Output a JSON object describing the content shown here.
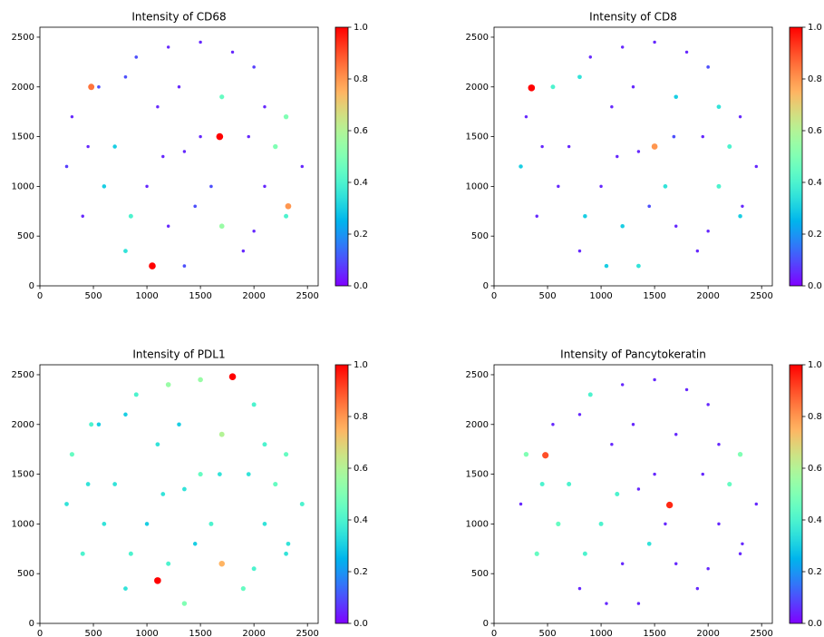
{
  "chart_data": [
    {
      "type": "scatter",
      "title": "Intensity of CD68",
      "colormap": "rainbow",
      "x": [
        1350,
        800,
        1500,
        2000,
        2300,
        2450,
        2300,
        1900,
        1350,
        800,
        400,
        250,
        300,
        550,
        1100,
        1700,
        1950,
        1600,
        1000,
        700,
        1200,
        1700,
        2100,
        900,
        1300,
        600,
        1500,
        2100,
        1050,
        1680,
        480,
        2320,
        1200,
        450,
        2000,
        1450,
        850,
        1800,
        1150,
        2200
      ],
      "y": [
        1350,
        2100,
        2450,
        2200,
        1700,
        1200,
        700,
        350,
        200,
        350,
        700,
        1200,
        1700,
        2000,
        1800,
        1900,
        1500,
        1000,
        1000,
        1400,
        600,
        600,
        1000,
        2300,
        2000,
        1000,
        1500,
        1800,
        200,
        1500,
        2000,
        800,
        2400,
        1400,
        550,
        800,
        700,
        2350,
        1300,
        1400
      ],
      "intensity": [
        0.05,
        0.1,
        0.05,
        0.08,
        0.5,
        0.05,
        0.4,
        0.05,
        0.1,
        0.35,
        0.05,
        0.08,
        0.05,
        0.1,
        0.05,
        0.45,
        0.05,
        0.1,
        0.05,
        0.3,
        0.05,
        0.55,
        0.05,
        0.1,
        0.05,
        0.3,
        0.05,
        0.05,
        1.0,
        1.0,
        0.85,
        0.8,
        0.05,
        0.05,
        0.05,
        0.1,
        0.4,
        0.05,
        0.05,
        0.5
      ],
      "xlim": [
        0,
        2600
      ],
      "ylim": [
        0,
        2600
      ],
      "xticks": [
        0,
        500,
        1000,
        1500,
        2000,
        2500
      ],
      "yticks": [
        0,
        500,
        1000,
        1500,
        2000,
        2500
      ],
      "clim": [
        0,
        1
      ],
      "cticks": [
        {
          "value": 0,
          "label": "0.0"
        },
        0.2,
        0.4,
        0.6,
        0.8,
        {
          "value": 1,
          "label": "1.0"
        }
      ]
    },
    {
      "type": "scatter",
      "title": "Intensity of CD8",
      "colormap": "rainbow",
      "x": [
        1350,
        800,
        1500,
        2000,
        2300,
        2450,
        2300,
        1900,
        1350,
        800,
        400,
        250,
        300,
        550,
        1100,
        1700,
        1950,
        1600,
        1000,
        700,
        1200,
        1700,
        2100,
        900,
        1300,
        600,
        1500,
        2100,
        1050,
        1680,
        350,
        2320,
        1200,
        450,
        2000,
        1450,
        850,
        1800,
        1150,
        2200
      ],
      "y": [
        1350,
        2100,
        2450,
        2200,
        1700,
        1200,
        700,
        350,
        200,
        350,
        700,
        1200,
        1700,
        2000,
        1800,
        1900,
        1500,
        1000,
        1000,
        1400,
        600,
        600,
        1000,
        2300,
        2000,
        1000,
        1400,
        1800,
        200,
        1500,
        1990,
        800,
        2400,
        1400,
        550,
        800,
        700,
        2350,
        1300,
        1400
      ],
      "intensity": [
        0.05,
        0.35,
        0.05,
        0.1,
        0.05,
        0.05,
        0.3,
        0.05,
        0.35,
        0.05,
        0.05,
        0.3,
        0.05,
        0.4,
        0.05,
        0.3,
        0.05,
        0.35,
        0.05,
        0.05,
        0.3,
        0.05,
        0.4,
        0.05,
        0.05,
        0.05,
        0.8,
        0.35,
        0.3,
        0.1,
        1.0,
        0.05,
        0.05,
        0.05,
        0.05,
        0.1,
        0.3,
        0.05,
        0.05,
        0.4
      ],
      "xlim": [
        0,
        2600
      ],
      "ylim": [
        0,
        2600
      ],
      "xticks": [
        0,
        500,
        1000,
        1500,
        2000,
        2500
      ],
      "yticks": [
        0,
        500,
        1000,
        1500,
        2000,
        2500
      ],
      "clim": [
        0,
        1
      ],
      "cticks": [
        {
          "value": 0,
          "label": "0.0"
        },
        0.2,
        0.4,
        0.6,
        0.8,
        {
          "value": 1,
          "label": "1.0"
        }
      ]
    },
    {
      "type": "scatter",
      "title": "Intensity of PDL1",
      "colormap": "rainbow",
      "x": [
        1350,
        800,
        1500,
        2000,
        2300,
        2450,
        2300,
        1900,
        1350,
        800,
        400,
        250,
        300,
        550,
        1100,
        1700,
        1950,
        1600,
        1000,
        700,
        1200,
        1700,
        2100,
        900,
        1300,
        600,
        1500,
        2100,
        1100,
        1680,
        480,
        2320,
        1200,
        450,
        2000,
        1450,
        850,
        1800,
        1150,
        2200
      ],
      "y": [
        1350,
        2100,
        2450,
        2200,
        1700,
        1200,
        700,
        350,
        200,
        350,
        700,
        1200,
        1700,
        2000,
        1800,
        1900,
        1500,
        1000,
        1000,
        1400,
        600,
        600,
        1000,
        2300,
        2000,
        1000,
        1500,
        1800,
        430,
        1500,
        2000,
        800,
        2400,
        1400,
        550,
        800,
        700,
        2480,
        1300,
        1400
      ],
      "intensity": [
        0.35,
        0.3,
        0.55,
        0.4,
        0.45,
        0.4,
        0.35,
        0.45,
        0.5,
        0.35,
        0.4,
        0.35,
        0.45,
        0.3,
        0.35,
        0.6,
        0.35,
        0.4,
        0.3,
        0.35,
        0.4,
        0.75,
        0.35,
        0.4,
        0.3,
        0.35,
        0.45,
        0.4,
        1.0,
        0.35,
        0.4,
        0.35,
        0.55,
        0.35,
        0.4,
        0.3,
        0.4,
        1.0,
        0.35,
        0.45
      ],
      "xlim": [
        0,
        2600
      ],
      "ylim": [
        0,
        2600
      ],
      "xticks": [
        0,
        500,
        1000,
        1500,
        2000,
        2500
      ],
      "yticks": [
        0,
        500,
        1000,
        1500,
        2000,
        2500
      ],
      "clim": [
        0,
        1
      ],
      "cticks": [
        {
          "value": 0,
          "label": "0.0"
        },
        0.2,
        0.4,
        0.6,
        0.8,
        {
          "value": 1,
          "label": "1.0"
        }
      ]
    },
    {
      "type": "scatter",
      "title": "Intensity of Pancytokeratin",
      "colormap": "rainbow",
      "x": [
        1350,
        800,
        1500,
        2000,
        2300,
        2450,
        2300,
        1900,
        1350,
        800,
        400,
        250,
        300,
        550,
        1100,
        1700,
        1950,
        1600,
        1000,
        700,
        1200,
        1700,
        2100,
        900,
        1300,
        600,
        1500,
        2100,
        1050,
        1640,
        480,
        2320,
        1200,
        450,
        2000,
        1450,
        850,
        1800,
        1150,
        2200
      ],
      "y": [
        1350,
        2100,
        2450,
        2200,
        1700,
        1200,
        700,
        350,
        200,
        350,
        700,
        1200,
        1700,
        2000,
        1800,
        1900,
        1500,
        1000,
        1000,
        1400,
        600,
        600,
        1000,
        2300,
        2000,
        1000,
        1500,
        1800,
        200,
        1190,
        1690,
        800,
        2400,
        1400,
        550,
        800,
        700,
        2350,
        1300,
        1400
      ],
      "intensity": [
        0.05,
        0.05,
        0.05,
        0.05,
        0.5,
        0.05,
        0.05,
        0.05,
        0.05,
        0.05,
        0.45,
        0.05,
        0.5,
        0.05,
        0.05,
        0.05,
        0.05,
        0.05,
        0.4,
        0.4,
        0.05,
        0.05,
        0.05,
        0.4,
        0.05,
        0.45,
        0.05,
        0.05,
        0.05,
        0.95,
        0.9,
        0.05,
        0.05,
        0.4,
        0.05,
        0.35,
        0.4,
        0.05,
        0.4,
        0.45
      ],
      "xlim": [
        0,
        2600
      ],
      "ylim": [
        0,
        2600
      ],
      "xticks": [
        0,
        500,
        1000,
        1500,
        2000,
        2500
      ],
      "yticks": [
        0,
        500,
        1000,
        1500,
        2000,
        2500
      ],
      "clim": [
        0,
        1
      ],
      "cticks": [
        {
          "value": 0,
          "label": "0.0"
        },
        0.2,
        0.4,
        0.6,
        0.8,
        {
          "value": 1,
          "label": "1.0"
        }
      ]
    }
  ]
}
